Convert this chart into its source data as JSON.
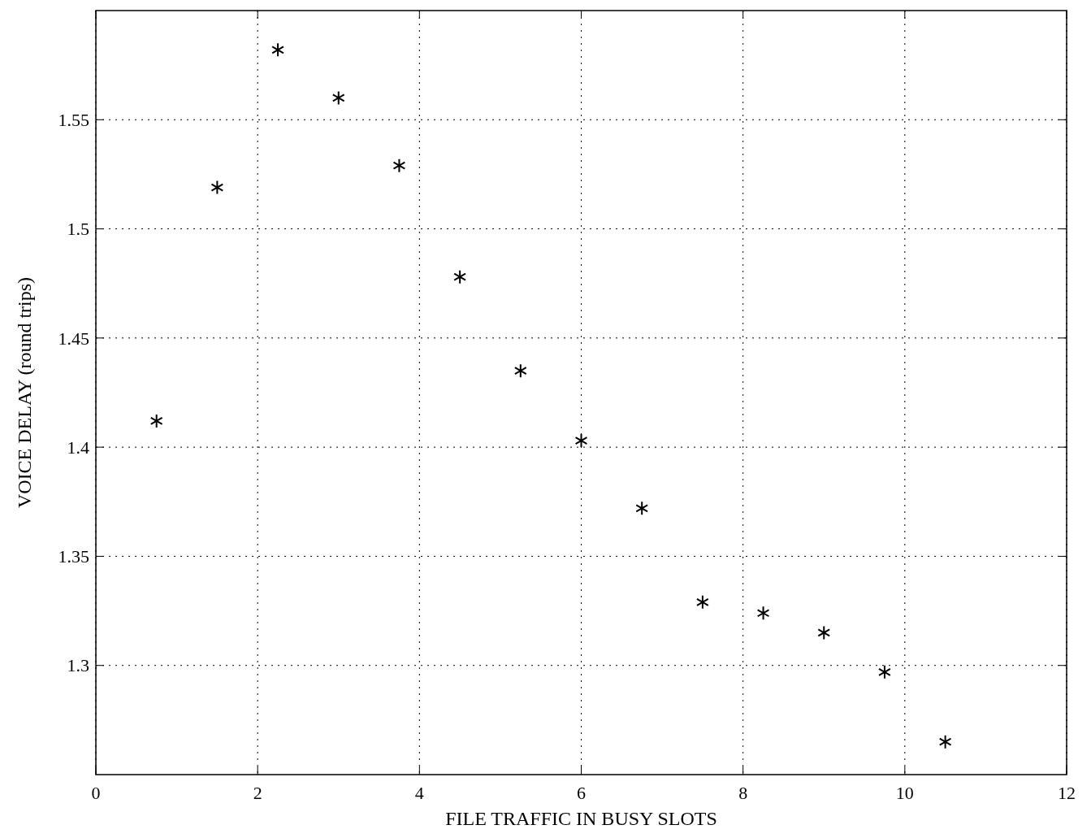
{
  "chart_data": {
    "type": "scatter",
    "xlabel": "FILE TRAFFIC IN BUSY SLOTS",
    "ylabel": "VOICE DELAY (round trips)",
    "x": [
      0.75,
      1.5,
      2.25,
      3,
      3.75,
      4.5,
      5.25,
      6,
      6.75,
      7.5,
      8.25,
      9,
      9.75,
      10.5
    ],
    "series": [
      {
        "color": "#000000",
        "values": [
          1.412,
          1.519,
          1.582,
          1.56,
          1.529,
          1.478,
          1.435,
          1.403,
          1.372,
          1.329,
          1.324,
          1.315,
          1.297,
          1.265
        ]
      }
    ],
    "xlim": [
      0,
      12
    ],
    "xticks": [
      0,
      2,
      4,
      6,
      8,
      10,
      12
    ],
    "ylim": [
      1.25,
      1.6
    ],
    "yticks": [
      1.3,
      1.35,
      1.4,
      1.45,
      1.5,
      1.55
    ],
    "grid": true,
    "marker": "cross"
  }
}
